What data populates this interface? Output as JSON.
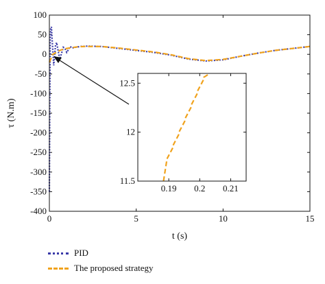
{
  "chart_data": [
    {
      "type": "line",
      "title": "",
      "xlabel": "t (s)",
      "ylabel": "τ (N.m)",
      "xlim": [
        0,
        15
      ],
      "ylim": [
        -400,
        100
      ],
      "x_ticks": [
        "0",
        "5",
        "10",
        "15"
      ],
      "y_ticks": [
        "100",
        "50",
        "0",
        "-50",
        "-100",
        "-150",
        "-200",
        "-250",
        "-300",
        "-350",
        "-400"
      ],
      "grid": false,
      "legend_position": "below",
      "series": [
        {
          "name": "PID",
          "color": "#3a3aa8",
          "style": "dotted",
          "x": [
            0,
            0.02,
            0.05,
            0.08,
            0.12,
            0.15,
            0.2,
            0.25,
            0.3,
            0.35,
            0.42,
            0.5,
            0.6,
            0.7,
            0.8,
            0.9,
            1.0,
            1.1,
            1.2,
            1.3,
            1.5,
            1.8,
            2.2,
            3,
            4,
            5,
            6,
            7,
            8,
            9,
            10,
            11,
            12,
            13,
            14,
            15
          ],
          "y": [
            -350,
            -150,
            40,
            65,
            70,
            45,
            10,
            -28,
            -5,
            22,
            30,
            10,
            -12,
            2,
            18,
            15,
            5,
            12,
            20,
            16,
            18,
            20,
            21,
            20,
            15,
            10,
            5,
            -2,
            -12,
            -17,
            -14,
            -5,
            3,
            10,
            15,
            20
          ]
        },
        {
          "name": "The proposed strategy",
          "color": "#f0a21c",
          "style": "dashed",
          "x": [
            0,
            0.1,
            0.2,
            0.4,
            0.6,
            0.8,
            1.0,
            1.3,
            1.6,
            2.0,
            3,
            4,
            5,
            6,
            7,
            8,
            9,
            10,
            11,
            12,
            13,
            14,
            15
          ],
          "y": [
            -20,
            -10,
            0,
            5,
            10,
            13,
            15,
            17,
            19,
            20,
            20,
            16,
            11,
            6,
            -1,
            -11,
            -16,
            -13,
            -5,
            3,
            10,
            15,
            20
          ]
        }
      ]
    },
    {
      "type": "line",
      "title": "",
      "xlim": [
        0.18,
        0.215
      ],
      "ylim": [
        11.5,
        12.6
      ],
      "x_ticks": [
        "0.19",
        "0.2",
        "0.21"
      ],
      "y_ticks": [
        "11.5",
        "12",
        "12.5"
      ],
      "series": [
        {
          "name": "The proposed strategy",
          "color": "#f0a21c",
          "style": "dashed",
          "x": [
            0.1883,
            0.1893,
            0.1893,
            0.1913,
            0.1913,
            0.1933,
            0.1933,
            0.1953,
            0.1953,
            0.1973,
            0.1973,
            0.1993,
            0.1993,
            0.2013,
            0.2013,
            0.2033
          ],
          "y": [
            11.5,
            11.7,
            11.72,
            11.84,
            11.86,
            11.98,
            12.0,
            12.12,
            12.14,
            12.26,
            12.28,
            12.4,
            12.42,
            12.54,
            12.56,
            12.6
          ]
        }
      ]
    }
  ],
  "legend": {
    "pid_label": "PID",
    "proposed_label": "The proposed strategy"
  }
}
